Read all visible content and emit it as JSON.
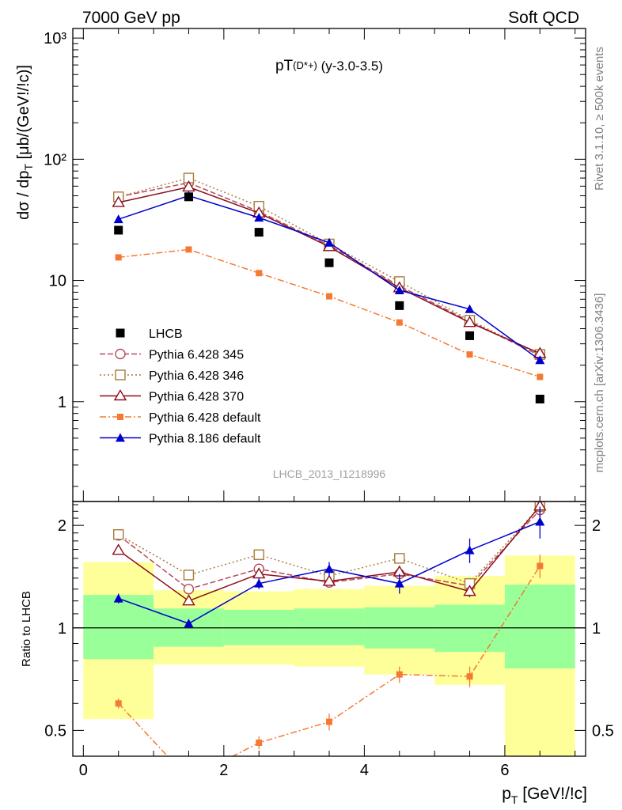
{
  "header": {
    "left": "7000 GeV pp",
    "right": "Soft QCD"
  },
  "plot": {
    "title": "pT",
    "title_sub": "(D*+)",
    "title_suffix": " (y-3.0-3.5)",
    "watermark": "LHCB_2013_I1218996",
    "ylabel_top": "dσ / dp_T [μb/(GeV!/!c)]",
    "ylabel_bottom": "Ratio to LHCB",
    "xlabel": "p_T [GeV!/!c]",
    "side_top": "Rivet 3.1.10, ≥ 500k events",
    "side_bottom": "mcplots.cern.ch [arXiv:1306.3436]"
  },
  "chart_data": {
    "type": "line",
    "top_panel": {
      "yscale": "log",
      "ylim": [
        0.15,
        1200
      ],
      "yticks": [
        1,
        10,
        100,
        1000
      ],
      "yticklabels": [
        "1",
        "10",
        "10²",
        "10³"
      ]
    },
    "ratio_panel": {
      "yscale": "log",
      "ylim": [
        0.42,
        2.35
      ],
      "yticks": [
        0.5,
        1,
        2
      ],
      "yticklabels": [
        "0.5",
        "1",
        "2"
      ]
    },
    "xlim": [
      -0.15,
      7.15
    ],
    "xticks": [
      0,
      2,
      4,
      6
    ],
    "xticklabels": [
      "0",
      "2",
      "4",
      "6"
    ],
    "x": [
      0.5,
      1.5,
      2.5,
      3.5,
      4.5,
      5.5,
      6.5
    ],
    "bins": [
      [
        0,
        1
      ],
      [
        1,
        2
      ],
      [
        2,
        3
      ],
      [
        3,
        4
      ],
      [
        4,
        5
      ],
      [
        5,
        6
      ],
      [
        6,
        7
      ]
    ],
    "data": {
      "name": "LHCB",
      "values": [
        26,
        49,
        25,
        14,
        6.2,
        3.5,
        1.05
      ],
      "band_inner": [
        [
          0.81,
          1.25
        ],
        [
          0.88,
          1.14
        ],
        [
          0.89,
          1.13
        ],
        [
          0.89,
          1.14
        ],
        [
          0.87,
          1.15
        ],
        [
          0.85,
          1.17
        ],
        [
          0.76,
          1.34
        ]
      ],
      "band_outer": [
        [
          0.54,
          1.56
        ],
        [
          0.78,
          1.29
        ],
        [
          0.78,
          1.28
        ],
        [
          0.77,
          1.3
        ],
        [
          0.73,
          1.33
        ],
        [
          0.68,
          1.42
        ],
        [
          0.42,
          1.63
        ]
      ]
    },
    "series": [
      {
        "name": "Pythia 6.428 345",
        "color": "#b54a5e",
        "marker": "circle-open",
        "dash": "7,3",
        "values": [
          49,
          64,
          37,
          19.5,
          9.0,
          4.6,
          2.4
        ],
        "ratio": [
          1.87,
          1.3,
          1.49,
          1.36,
          1.44,
          1.33,
          2.22
        ],
        "ratio_err": [
          0.03,
          0.03,
          0.03,
          0.03,
          0.04,
          0.05,
          0.1
        ]
      },
      {
        "name": "Pythia 6.428 346",
        "color": "#a77b3c",
        "marker": "square-open",
        "dash": "2,3",
        "values": [
          49,
          70,
          41,
          20,
          9.8,
          4.7,
          2.45
        ],
        "ratio": [
          1.88,
          1.43,
          1.64,
          1.42,
          1.6,
          1.35,
          2.27
        ],
        "ratio_err": [
          0.03,
          0.03,
          0.03,
          0.03,
          0.04,
          0.05,
          0.1
        ]
      },
      {
        "name": "Pythia 6.428 370",
        "color": "#8b0e1a",
        "marker": "triangle-open",
        "dash": "",
        "values": [
          44,
          59,
          36,
          19,
          8.7,
          4.5,
          2.5
        ],
        "ratio": [
          1.69,
          1.2,
          1.44,
          1.37,
          1.46,
          1.28,
          2.28
        ],
        "ratio_err": [
          0.03,
          0.03,
          0.03,
          0.03,
          0.04,
          0.05,
          0.1
        ]
      },
      {
        "name": "Pythia 6.428 default",
        "color": "#f47a33",
        "marker": "square-filled",
        "dash": "8,3,2,3",
        "values": [
          15.5,
          18,
          11.5,
          7.4,
          4.5,
          2.45,
          1.6
        ],
        "ratio": [
          0.6,
          0.36,
          0.46,
          0.53,
          0.73,
          0.72,
          1.52
        ],
        "ratio_err": [
          0.02,
          0.02,
          0.02,
          0.03,
          0.04,
          0.05,
          0.12
        ]
      },
      {
        "name": "Pythia 8.186 default",
        "color": "#0000cc",
        "marker": "triangle-filled",
        "dash": "",
        "values": [
          32,
          50,
          33,
          20.5,
          8.3,
          5.8,
          2.2
        ],
        "ratio": [
          1.22,
          1.03,
          1.35,
          1.49,
          1.35,
          1.69,
          2.05
        ],
        "ratio_err": [
          0.04,
          0.03,
          0.05,
          0.07,
          0.09,
          0.14,
          0.22
        ]
      }
    ],
    "legend_position": "lower-left",
    "grid": false
  }
}
